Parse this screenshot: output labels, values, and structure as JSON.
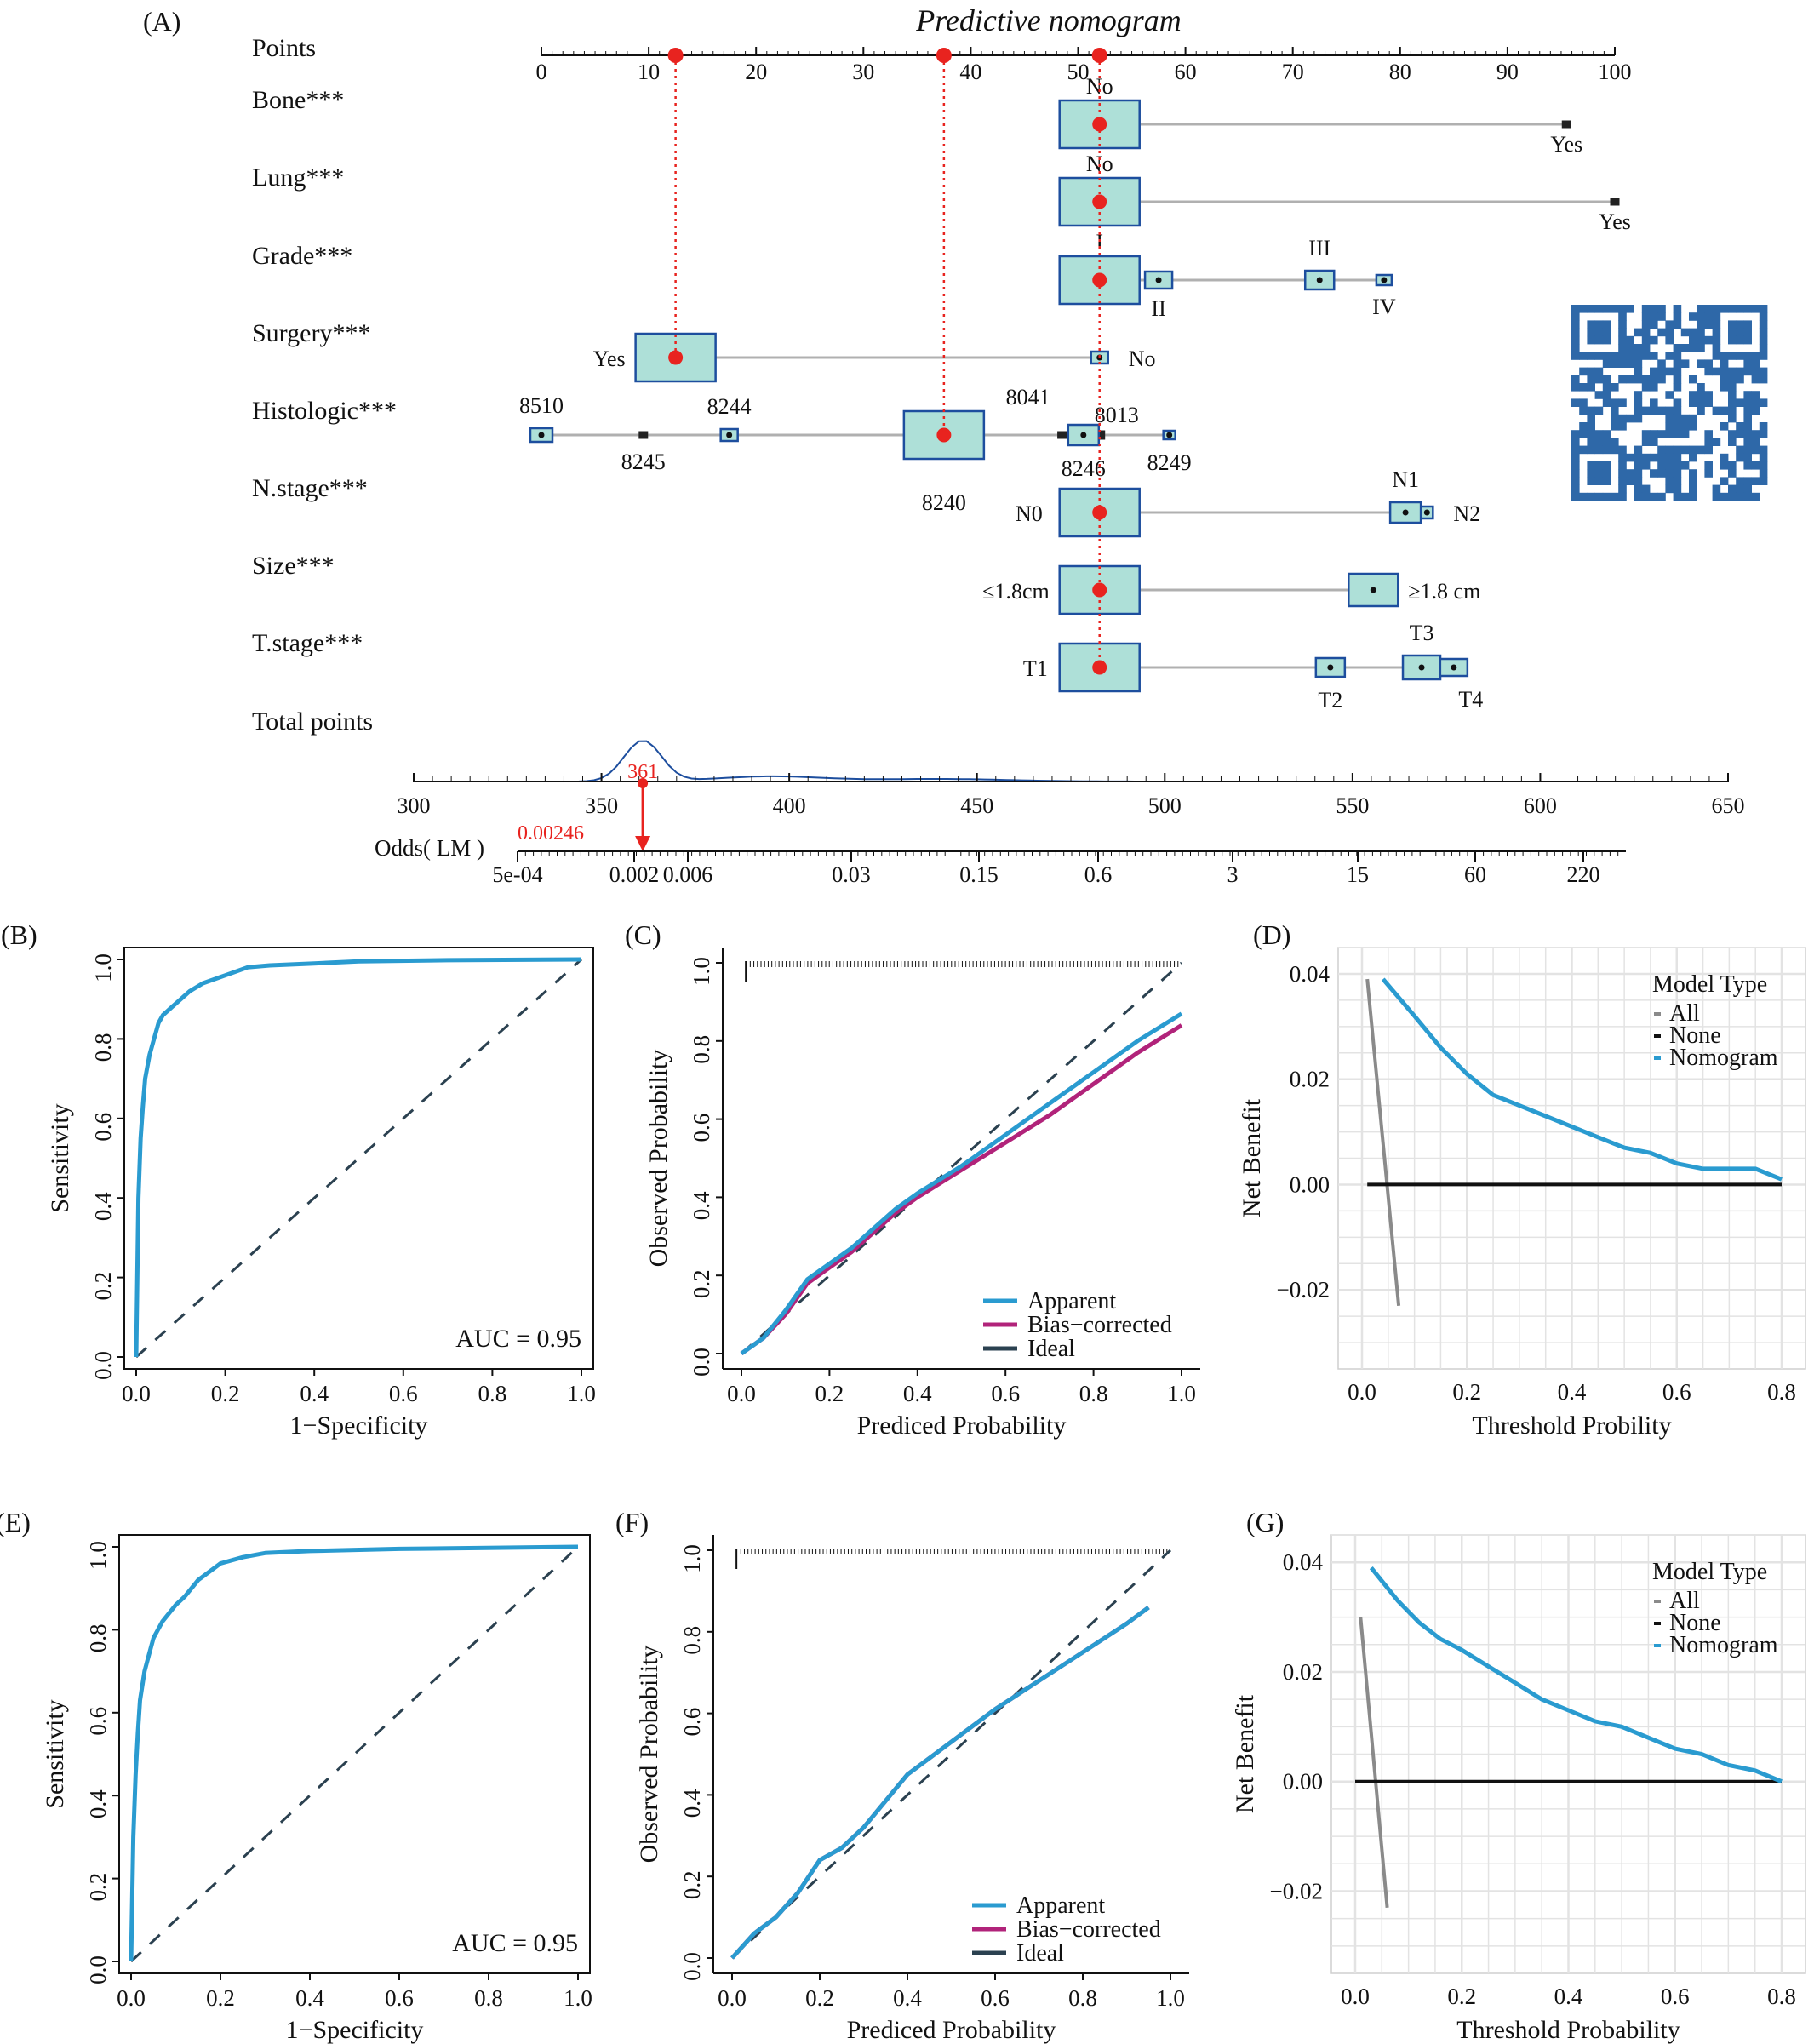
{
  "colors": {
    "blue": "#2a9bd0",
    "magenta": "#b1237a",
    "ideal": "#2b4150",
    "red": "#e8231f",
    "box_fill": "#aee0d8",
    "box_stroke": "#1d4e9e",
    "gray": "#8a8a8a",
    "grid": "#e3e3e3",
    "axis": "#111111",
    "qr": "#2e68a8"
  },
  "chart_data": [
    {
      "type": "nomogram",
      "panel_label": "(A)",
      "title": "Predictive nomogram",
      "points_label": "Points",
      "points_ticks": [
        "0",
        "10",
        "20",
        "30",
        "40",
        "50",
        "60",
        "70",
        "80",
        "90",
        "100"
      ],
      "variables": [
        {
          "name": "Bone***",
          "levels": [
            {
              "label": "No",
              "points": 52
            },
            {
              "label": "Yes",
              "points": 95.5
            }
          ],
          "selected_points": 52
        },
        {
          "name": "Lung***",
          "levels": [
            {
              "label": "No",
              "points": 52
            },
            {
              "label": "Yes",
              "points": 100
            }
          ],
          "selected_points": 52
        },
        {
          "name": "Grade***",
          "levels": [
            {
              "label": "I",
              "points": 52
            },
            {
              "label": "II",
              "points": 57.5
            },
            {
              "label": "III",
              "points": 72.5
            },
            {
              "label": "IV",
              "points": 78.5
            }
          ],
          "selected_points": 52
        },
        {
          "name": "Surgery***",
          "levels": [
            {
              "label": "Yes",
              "points": 12.5
            },
            {
              "label": "No",
              "points": 52
            }
          ],
          "selected_points": 12.5
        },
        {
          "name": "Histologic***",
          "levels": [
            {
              "label": "8510",
              "points": 0
            },
            {
              "label": "8245",
              "points": 9.5
            },
            {
              "label": "8244",
              "points": 17.5
            },
            {
              "label": "8240",
              "points": 37.5
            },
            {
              "label": "8041",
              "points": 48.5
            },
            {
              "label": "8013",
              "points": 52
            },
            {
              "label": "8246",
              "points": 50.5
            },
            {
              "label": "8249",
              "points": 58.5
            }
          ],
          "selected_points": 37.5
        },
        {
          "name": "N.stage***",
          "levels": [
            {
              "label": "N0",
              "points": 52
            },
            {
              "label": "N1",
              "points": 80.5
            },
            {
              "label": "N2",
              "points": 82.5
            }
          ],
          "selected_points": 52
        },
        {
          "name": "Size***",
          "levels": [
            {
              "label": "≤1.8cm",
              "points": 52
            },
            {
              "label": "≥1.8 cm",
              "points": 77.5
            }
          ],
          "selected_points": 52
        },
        {
          "name": "T.stage***",
          "levels": [
            {
              "label": "T1",
              "points": 52
            },
            {
              "label": "T2",
              "points": 73.5
            },
            {
              "label": "T3",
              "points": 82
            },
            {
              "label": "T4",
              "points": 85
            }
          ],
          "selected_points": 52
        }
      ],
      "total_label": "Total points",
      "total_ticks": [
        "300",
        "350",
        "400",
        "450",
        "500",
        "550",
        "600",
        "650"
      ],
      "total_value": "361",
      "odds_label": "Odds( LM )",
      "odds_value": "0.00246",
      "odds_ticks": [
        "5e-04",
        "0.002",
        "0.006",
        "0.03",
        "0.15",
        "0.6",
        "3",
        "15",
        "60",
        "220"
      ]
    },
    {
      "type": "line",
      "panel_label": "(B)",
      "subtype": "roc",
      "xlabel": "1−Specificity",
      "ylabel": "Sensitivity",
      "xlim": [
        0,
        1
      ],
      "ylim": [
        0,
        1
      ],
      "ticks": [
        "0.0",
        "0.2",
        "0.4",
        "0.6",
        "0.8",
        "1.0"
      ],
      "annotation": "AUC = 0.95",
      "series": [
        {
          "name": "ROC",
          "x": [
            0,
            0.005,
            0.01,
            0.015,
            0.02,
            0.03,
            0.04,
            0.05,
            0.06,
            0.08,
            0.1,
            0.12,
            0.15,
            0.2,
            0.25,
            0.3,
            0.4,
            0.5,
            0.7,
            1.0
          ],
          "y": [
            0,
            0.4,
            0.55,
            0.63,
            0.7,
            0.76,
            0.8,
            0.84,
            0.86,
            0.88,
            0.9,
            0.92,
            0.94,
            0.96,
            0.98,
            0.985,
            0.99,
            0.995,
            0.998,
            1.0
          ]
        }
      ]
    },
    {
      "type": "line",
      "panel_label": "(C)",
      "subtype": "calibration",
      "xlabel": "Prediced Probability",
      "ylabel": "Observed Probability",
      "xlim": [
        0,
        1
      ],
      "ylim": [
        0,
        1
      ],
      "ticks": [
        "0.0",
        "0.2",
        "0.4",
        "0.6",
        "0.8",
        "1.0"
      ],
      "series": [
        {
          "name": "Apparent",
          "x": [
            0,
            0.05,
            0.1,
            0.15,
            0.2,
            0.25,
            0.3,
            0.35,
            0.4,
            0.5,
            0.6,
            0.7,
            0.8,
            0.9,
            1.0
          ],
          "y": [
            0,
            0.04,
            0.11,
            0.19,
            0.23,
            0.27,
            0.32,
            0.37,
            0.41,
            0.48,
            0.56,
            0.64,
            0.72,
            0.8,
            0.87
          ]
        },
        {
          "name": "Bias−corrected",
          "x": [
            0,
            0.05,
            0.1,
            0.15,
            0.2,
            0.25,
            0.3,
            0.35,
            0.4,
            0.5,
            0.6,
            0.7,
            0.8,
            0.9,
            1.0
          ],
          "y": [
            0,
            0.04,
            0.1,
            0.18,
            0.22,
            0.26,
            0.31,
            0.36,
            0.4,
            0.47,
            0.54,
            0.61,
            0.69,
            0.77,
            0.84
          ]
        },
        {
          "name": "Ideal",
          "x": [
            0,
            1
          ],
          "y": [
            0,
            1
          ]
        }
      ]
    },
    {
      "type": "line",
      "panel_label": "(D)",
      "subtype": "decision_curve",
      "xlabel": "Threshold Probility",
      "ylabel": "Net Benefit",
      "xlim": [
        0,
        0.8
      ],
      "ylim": [
        -0.035,
        0.045
      ],
      "xticks": [
        "0.0",
        "0.2",
        "0.4",
        "0.6",
        "0.8"
      ],
      "yticks": [
        "−0.02",
        "0.00",
        "0.02",
        "0.04"
      ],
      "legend_title": "Model Type",
      "series": [
        {
          "name": "All",
          "x": [
            0.01,
            0.07
          ],
          "y": [
            0.039,
            -0.023
          ]
        },
        {
          "name": "None",
          "x": [
            0.01,
            0.8
          ],
          "y": [
            0,
            0
          ]
        },
        {
          "name": "Nomogram",
          "x": [
            0.04,
            0.1,
            0.15,
            0.2,
            0.25,
            0.3,
            0.35,
            0.4,
            0.45,
            0.5,
            0.55,
            0.6,
            0.65,
            0.7,
            0.75,
            0.8
          ],
          "y": [
            0.039,
            0.032,
            0.026,
            0.021,
            0.017,
            0.015,
            0.013,
            0.011,
            0.009,
            0.007,
            0.006,
            0.004,
            0.003,
            0.003,
            0.003,
            0.001
          ]
        }
      ]
    },
    {
      "type": "line",
      "panel_label": "(E)",
      "subtype": "roc",
      "xlabel": "1−Specificity",
      "ylabel": "Sensitivity",
      "xlim": [
        0,
        1
      ],
      "ylim": [
        0,
        1
      ],
      "ticks": [
        "0.0",
        "0.2",
        "0.4",
        "0.6",
        "0.8",
        "1.0"
      ],
      "annotation": "AUC = 0.95",
      "series": [
        {
          "name": "ROC",
          "x": [
            0,
            0.005,
            0.01,
            0.015,
            0.02,
            0.03,
            0.04,
            0.05,
            0.07,
            0.1,
            0.12,
            0.15,
            0.2,
            0.25,
            0.3,
            0.4,
            0.6,
            1.0
          ],
          "y": [
            0,
            0.3,
            0.45,
            0.55,
            0.63,
            0.7,
            0.74,
            0.78,
            0.82,
            0.86,
            0.88,
            0.92,
            0.96,
            0.975,
            0.985,
            0.99,
            0.995,
            1.0
          ]
        }
      ]
    },
    {
      "type": "line",
      "panel_label": "(F)",
      "subtype": "calibration",
      "xlabel": "Prediced Probability",
      "ylabel": "Observed Probability",
      "xlim": [
        0,
        1
      ],
      "ylim": [
        0,
        1
      ],
      "ticks": [
        "0.0",
        "0.2",
        "0.4",
        "0.6",
        "0.8",
        "1.0"
      ],
      "series": [
        {
          "name": "Apparent",
          "x": [
            0,
            0.05,
            0.1,
            0.15,
            0.2,
            0.25,
            0.3,
            0.4,
            0.5,
            0.6,
            0.7,
            0.8,
            0.9,
            0.95
          ],
          "y": [
            0,
            0.06,
            0.1,
            0.16,
            0.24,
            0.27,
            0.32,
            0.45,
            0.53,
            0.61,
            0.68,
            0.75,
            0.82,
            0.86
          ]
        },
        {
          "name": "Bias−corrected",
          "x": [
            0,
            0.05,
            0.1,
            0.15,
            0.2,
            0.25,
            0.3,
            0.4,
            0.5,
            0.6,
            0.7,
            0.8,
            0.9,
            0.95
          ],
          "y": [
            0,
            0.06,
            0.1,
            0.16,
            0.24,
            0.27,
            0.32,
            0.45,
            0.53,
            0.61,
            0.68,
            0.75,
            0.82,
            0.86
          ]
        },
        {
          "name": "Ideal",
          "x": [
            0,
            1
          ],
          "y": [
            0,
            1
          ]
        }
      ]
    },
    {
      "type": "line",
      "panel_label": "(G)",
      "subtype": "decision_curve",
      "xlabel": "Threshold Probability",
      "ylabel": "Net Benefit",
      "xlim": [
        0,
        0.8
      ],
      "ylim": [
        -0.035,
        0.045
      ],
      "xticks": [
        "0.0",
        "0.2",
        "0.4",
        "0.6",
        "0.8"
      ],
      "yticks": [
        "−0.02",
        "0.00",
        "0.02",
        "0.04"
      ],
      "legend_title": "Model Type",
      "series": [
        {
          "name": "All",
          "x": [
            0.01,
            0.06
          ],
          "y": [
            0.03,
            -0.023
          ]
        },
        {
          "name": "None",
          "x": [
            0.0,
            0.8
          ],
          "y": [
            0,
            0
          ]
        },
        {
          "name": "Nomogram",
          "x": [
            0.03,
            0.08,
            0.12,
            0.16,
            0.2,
            0.25,
            0.3,
            0.35,
            0.4,
            0.45,
            0.5,
            0.55,
            0.6,
            0.65,
            0.7,
            0.75,
            0.8
          ],
          "y": [
            0.039,
            0.033,
            0.029,
            0.026,
            0.024,
            0.021,
            0.018,
            0.015,
            0.013,
            0.011,
            0.01,
            0.008,
            0.006,
            0.005,
            0.003,
            0.002,
            0.0
          ]
        }
      ]
    }
  ]
}
